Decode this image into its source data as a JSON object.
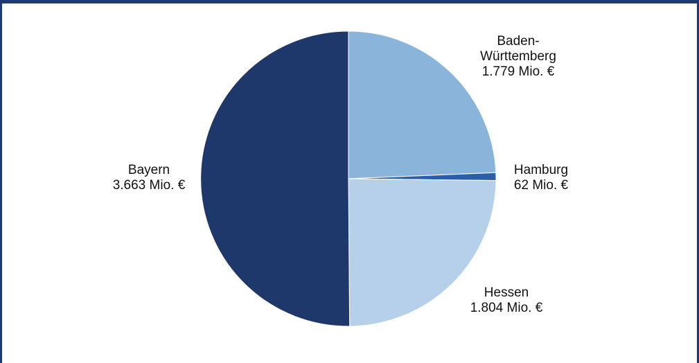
{
  "chart_data": {
    "type": "pie",
    "title": "",
    "unit": "Mio. €",
    "slices": [
      {
        "name": "Baden-Württemberg",
        "label_lines": [
          "Baden-",
          "Württemberg",
          "1.779 Mio. €"
        ],
        "value": 1779,
        "color": "#8bb4db"
      },
      {
        "name": "Hamburg",
        "label_lines": [
          "Hamburg",
          "62 Mio. €"
        ],
        "value": 62,
        "color": "#2a5ea8"
      },
      {
        "name": "Hessen",
        "label_lines": [
          "Hessen",
          "1.804 Mio. €"
        ],
        "value": 1804,
        "color": "#b5d0e8"
      },
      {
        "name": "Bayern",
        "label_lines": [
          "Bayern",
          "3.663 Mio. €"
        ],
        "value": 3663,
        "color": "#1e386c"
      }
    ],
    "start": "12 o'clock",
    "direction": "clockwise"
  }
}
